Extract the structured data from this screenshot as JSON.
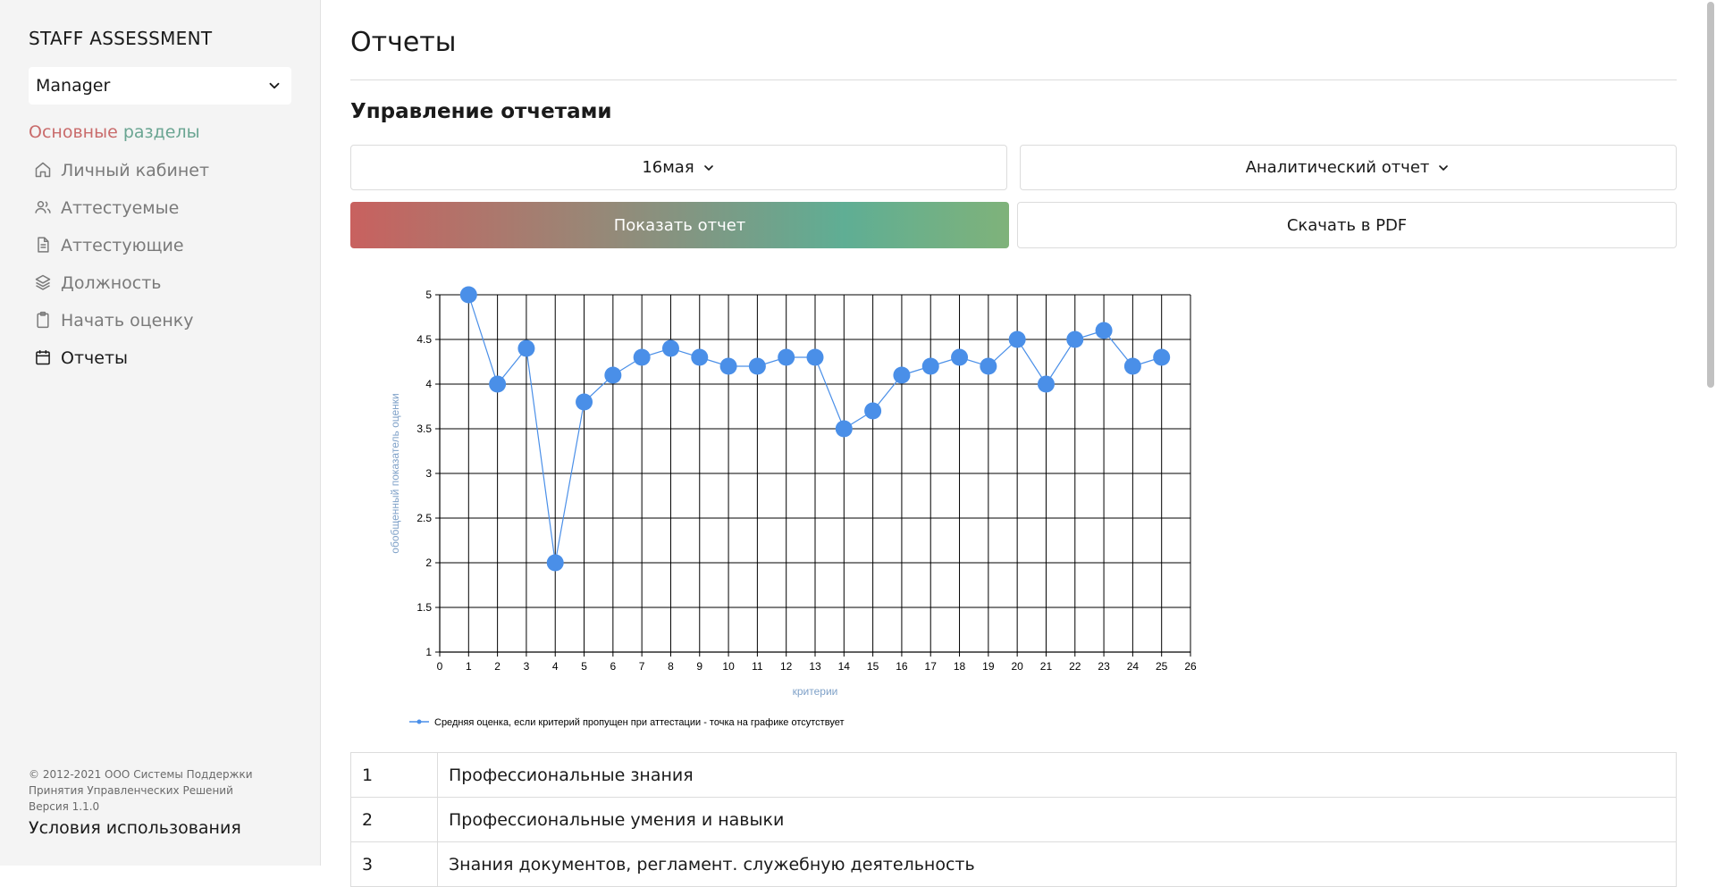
{
  "sidebar": {
    "brand": "STAFF ASSESSMENT",
    "role_value": "Manager",
    "section_title_part1": "Основные",
    "section_title_part2": "разделы",
    "items": [
      {
        "label": "Личный кабинет",
        "icon": "home-icon"
      },
      {
        "label": "Аттестуемые",
        "icon": "users-icon"
      },
      {
        "label": "Аттестующие",
        "icon": "document-icon"
      },
      {
        "label": "Должность",
        "icon": "layers-icon"
      },
      {
        "label": "Начать оценку",
        "icon": "clipboard-icon"
      },
      {
        "label": "Отчеты",
        "icon": "calendar-icon",
        "active": true
      }
    ],
    "footer": {
      "copyright": "© 2012-2021 ООО Системы Поддержки Принятия Управленческих Решений",
      "version": "Версия 1.1.0",
      "terms": "Условия использования"
    }
  },
  "main": {
    "title": "Отчеты",
    "subtitle": "Управление отчетами",
    "period_select": "16мая",
    "report_type_select": "Аналитический отчет",
    "show_report_label": "Показать отчет",
    "download_pdf_label": "Скачать в PDF"
  },
  "chart_data": {
    "type": "line",
    "title": "",
    "xlabel": "критерии",
    "ylabel": "обобщенный показатель оценки",
    "xlim": [
      0,
      26
    ],
    "ylim": [
      1,
      5
    ],
    "x_ticks": [
      0,
      1,
      2,
      3,
      4,
      5,
      6,
      7,
      8,
      9,
      10,
      11,
      12,
      13,
      14,
      15,
      16,
      17,
      18,
      19,
      20,
      21,
      22,
      23,
      24,
      25,
      26
    ],
    "y_ticks": [
      "1",
      "1.5",
      "2",
      "2.5",
      "3",
      "3.5",
      "4",
      "4.5",
      "5"
    ],
    "grid": true,
    "legend_position": "bottom-left",
    "series": [
      {
        "name": "Средняя оценка, если критерий пропущен при аттестации - точка на графике отсутствует",
        "color": "#4a8fe8",
        "x": [
          1,
          2,
          3,
          4,
          5,
          6,
          7,
          8,
          9,
          10,
          11,
          12,
          13,
          14,
          15,
          16,
          17,
          18,
          19,
          20,
          21,
          22,
          23,
          24,
          25
        ],
        "values": [
          5,
          4,
          4.4,
          2,
          3.8,
          4.1,
          4.3,
          4.4,
          4.3,
          4.2,
          4.2,
          4.3,
          4.3,
          3.5,
          3.7,
          4.1,
          4.2,
          4.3,
          4.2,
          4.5,
          4,
          4.5,
          4.6,
          4.2,
          4.3
        ]
      }
    ]
  },
  "criteria_table": [
    {
      "num": "1",
      "name": "Профессиональные знания"
    },
    {
      "num": "2",
      "name": "Профессиональные умения и навыки"
    },
    {
      "num": "3",
      "name": "Знания документов, регламент. служебную деятельность"
    }
  ]
}
